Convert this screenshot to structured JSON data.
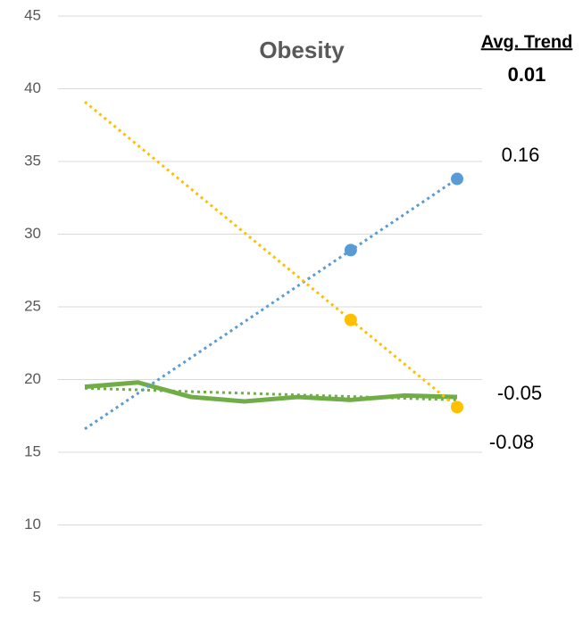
{
  "chart_data": {
    "type": "line",
    "title": "Obesity",
    "categories": [
      null,
      null,
      null,
      null,
      null,
      null,
      null,
      null
    ],
    "ylim": [
      5,
      45
    ],
    "yticks": [
      5,
      10,
      15,
      20,
      25,
      30,
      35,
      40,
      45
    ],
    "grid": true,
    "series": [
      {
        "color": "#70ad47",
        "line_style": "solid",
        "values": [
          19.5,
          19.8,
          18.8,
          18.5,
          18.8,
          18.6,
          18.9,
          18.8
        ]
      },
      {
        "color": "#70ad47",
        "line_style": "dotted",
        "values": [
          19.4,
          19.29,
          19.17,
          19.06,
          18.94,
          18.83,
          18.71,
          18.6
        ]
      },
      {
        "color": "#5b9bd5",
        "line_style": "dotted",
        "values": [
          16.6,
          19.06,
          21.51,
          23.97,
          26.43,
          28.89,
          31.34,
          33.8
        ]
      },
      {
        "color": "#5b9bd5",
        "line_style": "none",
        "markers": true,
        "values": [
          null,
          null,
          null,
          null,
          null,
          28.9,
          null,
          33.8
        ]
      },
      {
        "color": "#ffc000",
        "line_style": "dotted",
        "values": [
          39.1,
          36.1,
          33.1,
          30.1,
          27.1,
          24.1,
          21.1,
          18.1
        ]
      },
      {
        "color": "#ffc000",
        "line_style": "none",
        "markers": true,
        "values": [
          null,
          null,
          null,
          null,
          null,
          24.1,
          null,
          18.1
        ]
      }
    ],
    "annotations": [
      "Avg. Trend",
      "0.01",
      "0.16",
      "-0.05",
      "-0.08"
    ]
  }
}
